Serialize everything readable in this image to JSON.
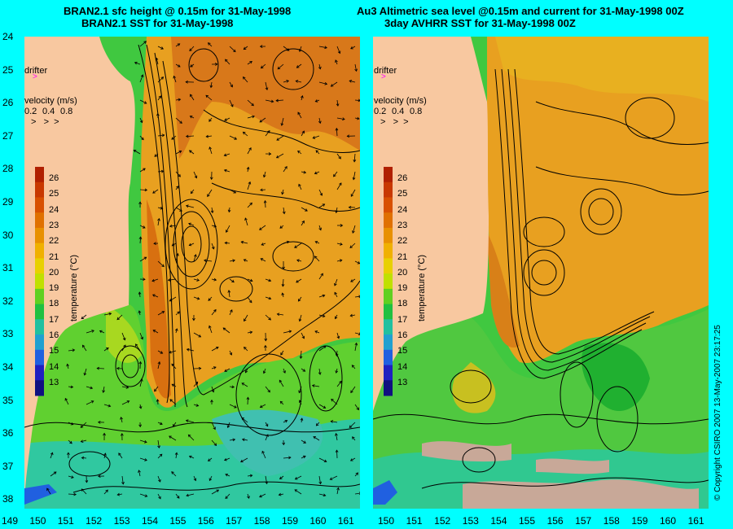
{
  "left": {
    "title_line1": "BRAN2.1 sfc height @ 0.15m for 31-May-1998",
    "title_line2": "BRAN2.1 SST for 31-May-1998"
  },
  "right": {
    "title_line1": "Au3 Altimetric sea level  @0.15m and current for 31-May-1998 00Z",
    "title_line2": "3day AVHRR SST for 31-May-1998 00Z"
  },
  "legend": {
    "drifter": "drifter",
    "velocity_title": "velocity (m/s)",
    "velocity_scale": [
      "0.2",
      "0.4",
      "0.8"
    ],
    "temperature_label": "temperature (°C)",
    "temperature_ticks": [
      "26",
      "25",
      "24",
      "23",
      "22",
      "21",
      "20",
      "19",
      "18",
      "17",
      "16",
      "15",
      "14",
      "13"
    ]
  },
  "y_axis": [
    "24",
    "25",
    "26",
    "27",
    "28",
    "29",
    "30",
    "31",
    "32",
    "33",
    "34",
    "35",
    "36",
    "37",
    "38"
  ],
  "x_axis_left": [
    "149",
    "150",
    "151",
    "152",
    "153",
    "154",
    "155",
    "156",
    "157",
    "158",
    "159",
    "160",
    "161"
  ],
  "x_axis_right": [
    "150",
    "151",
    "152",
    "153",
    "154",
    "155",
    "156",
    "157",
    "158",
    "159",
    "160",
    "161"
  ],
  "copyright": "© Copyright CSIRO 2007  13-May-2007 23:17:25",
  "colors": {
    "land": "#f8c8a0",
    "background": "#00ffff",
    "warm": "#e08a1c",
    "mid": "#e8b020",
    "cool": "#40c840",
    "cold": "#30d0b0",
    "drifter": "#ff00ff"
  },
  "colorbar_colors": [
    "#b02000",
    "#c83800",
    "#d85000",
    "#e07000",
    "#e89000",
    "#f0b000",
    "#e8d000",
    "#c0e000",
    "#60d020",
    "#20c040",
    "#20c0a0",
    "#20a0d0",
    "#2060e0",
    "#2020c0",
    "#101080"
  ]
}
